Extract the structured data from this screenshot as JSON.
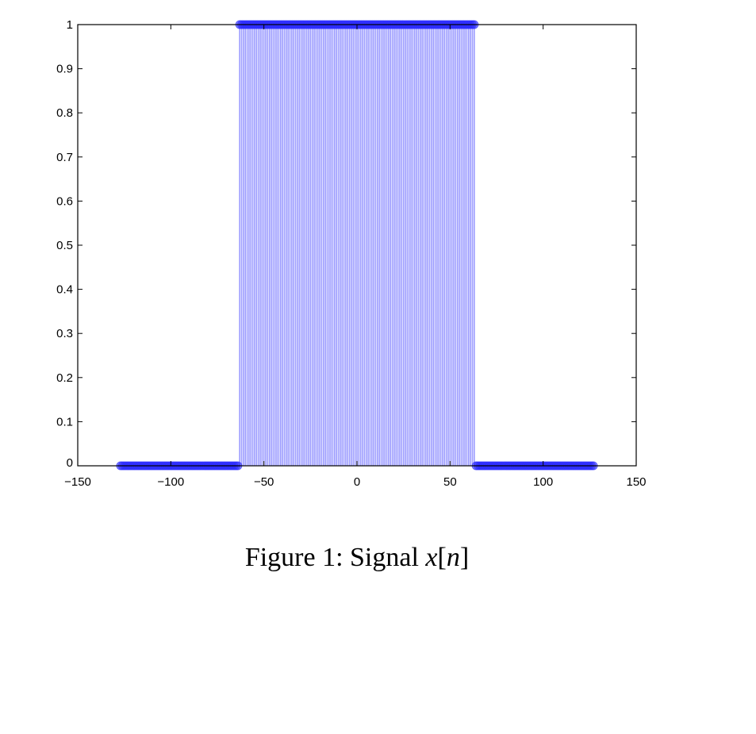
{
  "caption": {
    "prefix": "Figure 1: Signal ",
    "var": "x",
    "open": "[",
    "index": "n",
    "close": "]"
  },
  "chart_data": {
    "type": "scatter",
    "style": "stem",
    "title": "",
    "xlabel": "",
    "ylabel": "",
    "xlim": [
      -150,
      150
    ],
    "ylim": [
      0,
      1
    ],
    "xticks": [
      -150,
      -100,
      -50,
      0,
      50,
      100,
      150
    ],
    "xtick_labels": [
      "−150",
      "−100",
      "−50",
      "0",
      "50",
      "100",
      "150"
    ],
    "yticks": [
      0,
      0.1,
      0.2,
      0.3,
      0.4,
      0.5,
      0.6,
      0.7,
      0.8,
      0.9,
      1
    ],
    "ytick_labels": [
      "0",
      "0.1",
      "0.2",
      "0.3",
      "0.4",
      "0.5",
      "0.6",
      "0.7",
      "0.8",
      "0.9",
      "1"
    ],
    "grid": false,
    "n_range": [
      -127,
      127
    ],
    "pulse_range": [
      -63,
      63
    ],
    "pulse_value": 1,
    "off_value": 0,
    "marker_color": "#2b2bff",
    "stem_color": "#9b9bff"
  }
}
